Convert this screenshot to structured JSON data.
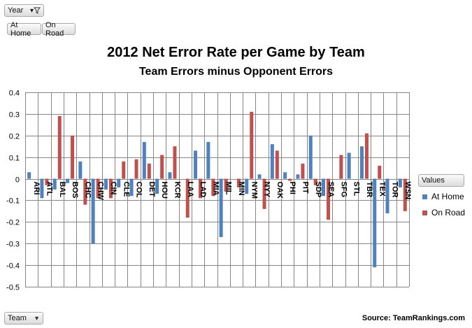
{
  "controls": {
    "year_label": "Year",
    "home_label": "At Home",
    "road_label": "On Road",
    "team_label": "Team",
    "values_label": "Values"
  },
  "source": "Source: TeamRankings.com",
  "colors": {
    "home": "#4f81bd",
    "road": "#c0504d",
    "grid": "#868686"
  },
  "chart_data": {
    "type": "bar",
    "title": "2012 Net Error Rate per Game by Team",
    "subtitle": "Team Errors minus Opponent Errors",
    "xlabel": "",
    "ylabel": "",
    "ylim": [
      -0.5,
      0.4
    ],
    "yticks": [
      -0.5,
      -0.4,
      -0.3,
      -0.2,
      -0.1,
      0,
      0.1,
      0.2,
      0.3,
      0.4
    ],
    "grid": true,
    "legend": "right",
    "categories": [
      "ARI",
      "ATL",
      "BAL",
      "BOS",
      "CHC",
      "CHW",
      "CIN",
      "CLE",
      "COL",
      "DET",
      "HOU",
      "KCR",
      "LAA",
      "LAD",
      "MIA",
      "MIL",
      "MIN",
      "NYM",
      "NYY",
      "OAK",
      "PHI",
      "PIT",
      "SDP",
      "SEA",
      "SFG",
      "STL",
      "TBR",
      "TEX",
      "TOR",
      "WSN"
    ],
    "series": [
      {
        "name": "At Home",
        "values": [
          0.03,
          -0.09,
          -0.05,
          -0.02,
          0.08,
          -0.3,
          -0.05,
          -0.04,
          -0.08,
          0.17,
          -0.07,
          0.03,
          0,
          0.13,
          0.17,
          -0.27,
          0,
          -0.07,
          0.02,
          0.16,
          0.03,
          0.02,
          0.2,
          -0.08,
          0,
          0.12,
          0.15,
          -0.41,
          -0.16,
          -0.04
        ]
      },
      {
        "name": "On Road",
        "values": [
          0,
          -0.03,
          0.29,
          0.2,
          -0.12,
          -0.09,
          -0.09,
          0.08,
          0.09,
          0.07,
          0.11,
          0.15,
          -0.18,
          -0.09,
          -0.08,
          -0.06,
          -0.04,
          0.31,
          -0.14,
          0.13,
          -0.01,
          0.07,
          -0.03,
          -0.19,
          0.11,
          0,
          0.21,
          0.06,
          0,
          -0.15
        ]
      }
    ]
  }
}
